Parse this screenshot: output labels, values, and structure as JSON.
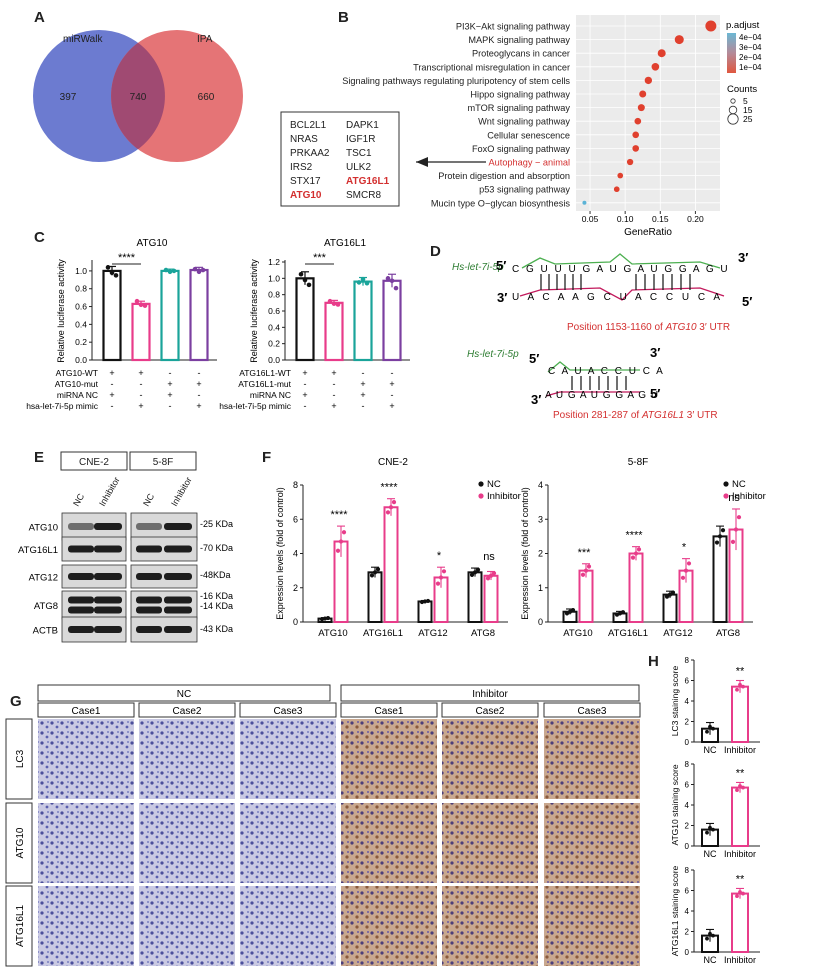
{
  "panels": {
    "A": {
      "letter": "A",
      "set_left": "miRWalk",
      "set_right": "IPA",
      "only_left": "397",
      "overlap": "740",
      "only_right": "660",
      "colors": {
        "left": "#6c7bd0",
        "right": "#e57476",
        "overlap": "#a04a72"
      }
    },
    "B": {
      "letter": "B",
      "genes_left": [
        "BCL2L1",
        "NRAS",
        "PRKAA2",
        "IRS2",
        "STX17",
        "ATG10"
      ],
      "genes_right": [
        "DAPK1",
        "IGF1R",
        "TSC1",
        "ULK2",
        "ATG16L1",
        "SMCR8"
      ],
      "highlight_genes": [
        "ATG10",
        "ATG16L1"
      ],
      "legend_padjust_title": "p.adjust",
      "legend_padjust_ticks": [
        "4e−04",
        "3e−04",
        "2e−04",
        "1e−04"
      ],
      "legend_counts_title": "Counts",
      "legend_counts_values": [
        "5",
        "15",
        "25"
      ],
      "xlabel": "GeneRatio",
      "xticks": [
        "0.05",
        "0.10",
        "0.15",
        "0.20"
      ]
    },
    "C": {
      "letter": "C"
    },
    "D": {
      "letter": "D",
      "mirna_label": "Hs-let-7i-5p",
      "site1_mirna_top": "C G U U U G A U G A U G G A G U",
      "site1_utr_bottom": "U A C A A G C U A C C U C A",
      "site1_position_prefix": "Position 1153-1160 of ",
      "site1_gene": "ATG10",
      "site1_position_suffix": " 3′ UTR",
      "site2_mirna_top": "C A U A C C U C A",
      "site2_utr_bottom": "A U G A U G G A G U",
      "site2_position_prefix": "Position 281-287 of ",
      "site2_gene": "ATG16L1",
      "site2_position_suffix": " 3′ UTR",
      "five_prime": "5′",
      "three_prime": "3′"
    },
    "E": {
      "letter": "E",
      "cell_lines": [
        "CNE-2",
        "5-8F"
      ],
      "lanes": [
        "NC",
        "Inhibitor"
      ],
      "proteins": [
        "ATG10",
        "ATG16L1",
        "ATG12",
        "ATG8",
        "ACTB"
      ],
      "sizes": [
        "-25 KDa",
        "-70 KDa",
        "-48KDa",
        "-16 KDa",
        "-14 KDa",
        "-43 KDa"
      ]
    },
    "F": {
      "letter": "F"
    },
    "G": {
      "letter": "G",
      "groups": [
        "NC",
        "Inhibitor"
      ],
      "cases": [
        "Case1",
        "Case2",
        "Case3",
        "Case1",
        "Case2",
        "Case3"
      ],
      "rows": [
        "LC3",
        "ATG10",
        "ATG16L1"
      ]
    },
    "H": {
      "letter": "H"
    }
  },
  "chart_data": [
    {
      "id": "B-dotplot",
      "type": "scatter",
      "xlabel": "GeneRatio",
      "xlim": [
        0.03,
        0.235
      ],
      "categories": [
        "PI3K−Akt signaling pathway",
        "MAPK signaling pathway",
        "Proteoglycans in cancer",
        "Transcriptional misregulation in cancer",
        "Signaling pathways regulating pluripotency of stem cells",
        "Hippo signaling pathway",
        "mTOR signaling pathway",
        "Wnt signaling pathway",
        "Cellular senescence",
        "FoxO signaling pathway",
        "Autophagy − animal",
        "Protein digestion and absorption",
        "p53 signaling pathway",
        "Mucin type O−glycan biosynthesis"
      ],
      "highlight_category": "Autophagy − animal",
      "x": [
        0.222,
        0.177,
        0.152,
        0.143,
        0.133,
        0.125,
        0.123,
        0.118,
        0.115,
        0.115,
        0.107,
        0.093,
        0.088,
        0.042
      ],
      "counts": [
        26,
        20,
        17,
        16,
        15,
        14,
        14,
        13,
        13,
        13,
        12,
        10,
        10,
        5
      ],
      "p_adjust": [
        2e-05,
        3e-05,
        5e-05,
        5e-05,
        6e-05,
        6e-05,
        6e-05,
        7e-05,
        7e-05,
        7e-05,
        8e-05,
        0.0001,
        0.0001,
        0.00045
      ]
    },
    {
      "id": "C-ATG10",
      "type": "bar",
      "title": "ATG10",
      "ylabel": "Relative luciferase activity",
      "ylim": [
        0,
        1.1
      ],
      "yticks": [
        "0.0",
        "0.2",
        "0.4",
        "0.6",
        "0.8",
        "1.0"
      ],
      "categories": [
        "1",
        "2",
        "3",
        "4"
      ],
      "values": [
        1.0,
        0.63,
        1.0,
        1.01
      ],
      "errors": [
        0.05,
        0.03,
        0.02,
        0.03
      ],
      "points": [
        [
          1.04,
          0.98,
          0.95
        ],
        [
          0.66,
          0.62,
          0.61
        ],
        [
          1.01,
          0.99,
          1.0
        ],
        [
          1.02,
          0.99,
          1.01
        ]
      ],
      "colors": [
        "#111111",
        "#e83c8a",
        "#1aa49a",
        "#7b3fa0"
      ],
      "significance": "****",
      "row_labels": [
        "ATG10-WT",
        "ATG10-mut",
        "miRNA NC",
        "hsa-let-7i-5p mimic"
      ],
      "row_marks": [
        [
          "+",
          "+",
          "-",
          "-"
        ],
        [
          "-",
          "-",
          "+",
          "+"
        ],
        [
          "+",
          "-",
          "+",
          "-"
        ],
        [
          "-",
          "+",
          "-",
          "+"
        ]
      ]
    },
    {
      "id": "C-ATG16L1",
      "type": "bar",
      "title": "ATG16L1",
      "ylabel": "Relative luciferase activity",
      "ylim": [
        0,
        1.2
      ],
      "yticks": [
        "0.0",
        "0.2",
        "0.4",
        "0.6",
        "0.8",
        "1.0",
        "1.2"
      ],
      "categories": [
        "1",
        "2",
        "3",
        "4"
      ],
      "values": [
        1.0,
        0.7,
        0.96,
        0.97
      ],
      "errors": [
        0.08,
        0.03,
        0.05,
        0.08
      ],
      "points": [
        [
          1.05,
          0.98,
          0.92
        ],
        [
          0.72,
          0.69,
          0.68
        ],
        [
          0.95,
          0.99,
          0.94
        ],
        [
          1.0,
          0.97,
          0.88
        ]
      ],
      "colors": [
        "#111111",
        "#e83c8a",
        "#1aa49a",
        "#7b3fa0"
      ],
      "significance": "***",
      "row_labels": [
        "ATG16L1-WT",
        "ATG16L1-mut",
        "miRNA NC",
        "hsa-let-7i-5p mimic"
      ],
      "row_marks": [
        [
          "+",
          "+",
          "-",
          "-"
        ],
        [
          "-",
          "-",
          "+",
          "+"
        ],
        [
          "+",
          "-",
          "+",
          "-"
        ],
        [
          "-",
          "+",
          "-",
          "+"
        ]
      ]
    },
    {
      "id": "F-CNE2",
      "type": "bar",
      "title": "CNE-2",
      "ylabel": "Expression levels (fold of control)",
      "ylim": [
        0,
        8
      ],
      "yticks": [
        "0",
        "2",
        "4",
        "6",
        "8"
      ],
      "categories": [
        "ATG10",
        "ATG16L1",
        "ATG12",
        "ATG8"
      ],
      "series": [
        {
          "name": "NC",
          "values": [
            0.2,
            2.9,
            1.2,
            2.9
          ],
          "errors": [
            0.05,
            0.3,
            0.05,
            0.25
          ]
        },
        {
          "name": "Inhibitor",
          "values": [
            4.7,
            6.7,
            2.6,
            2.7
          ],
          "errors": [
            0.9,
            0.5,
            0.6,
            0.25
          ]
        }
      ],
      "significance": [
        "****",
        "****",
        "*",
        "ns"
      ]
    },
    {
      "id": "F-58F",
      "type": "bar",
      "title": "5-8F",
      "ylabel": "Expression levels (fold of control)",
      "ylim": [
        0,
        4
      ],
      "yticks": [
        "0",
        "1",
        "2",
        "3",
        "4"
      ],
      "categories": [
        "ATG10",
        "ATG16L1",
        "ATG12",
        "ATG8"
      ],
      "series": [
        {
          "name": "NC",
          "values": [
            0.3,
            0.25,
            0.8,
            2.5
          ],
          "errors": [
            0.08,
            0.06,
            0.1,
            0.3
          ]
        },
        {
          "name": "Inhibitor",
          "values": [
            1.5,
            2.0,
            1.5,
            2.7
          ],
          "errors": [
            0.2,
            0.2,
            0.35,
            0.6
          ]
        }
      ],
      "significance": [
        "***",
        "****",
        "*",
        "ns"
      ]
    },
    {
      "id": "H-LC3",
      "type": "bar",
      "ylabel": "LC3 staining score",
      "ylim": [
        0,
        8
      ],
      "yticks": [
        "0",
        "2",
        "4",
        "6",
        "8"
      ],
      "categories": [
        "NC",
        "Inhibitor"
      ],
      "values": [
        1.3,
        5.4
      ],
      "errors": [
        0.6,
        0.6
      ],
      "significance": "**"
    },
    {
      "id": "H-ATG10",
      "type": "bar",
      "ylabel": "ATG10 staining score",
      "ylim": [
        0,
        8
      ],
      "yticks": [
        "0",
        "2",
        "4",
        "6",
        "8"
      ],
      "categories": [
        "NC",
        "Inhibitor"
      ],
      "values": [
        1.6,
        5.7
      ],
      "errors": [
        0.6,
        0.5
      ],
      "significance": "**"
    },
    {
      "id": "H-ATG16L1",
      "type": "bar",
      "ylabel": "ATG16L1 staining score",
      "ylim": [
        0,
        8
      ],
      "yticks": [
        "0",
        "2",
        "4",
        "6",
        "8"
      ],
      "categories": [
        "NC",
        "Inhibitor"
      ],
      "values": [
        1.6,
        5.7
      ],
      "errors": [
        0.6,
        0.5
      ],
      "significance": "**"
    }
  ]
}
